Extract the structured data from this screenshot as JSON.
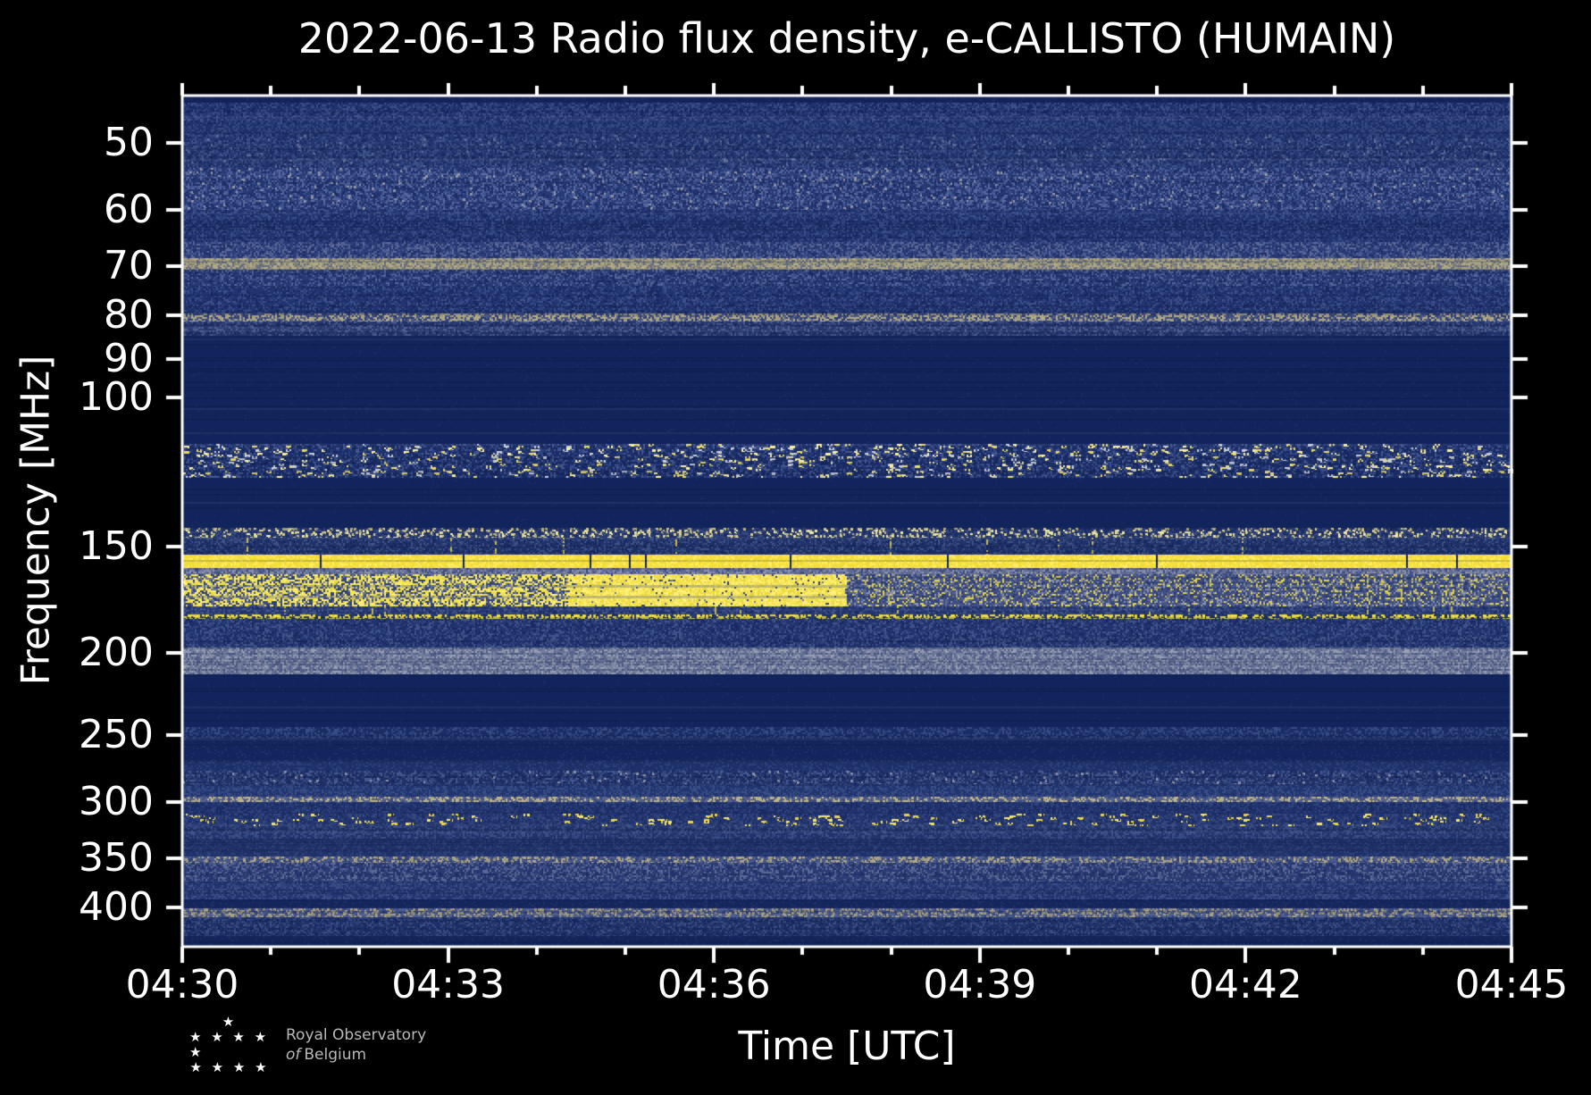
{
  "title": "2022-06-13 Radio flux density, e-CALLISTO (HUMAIN)",
  "logo": {
    "line1": "Royal Observatory",
    "line2_italic": "of",
    "line2_rest": "Belgium",
    "star_rows": [
      1,
      5,
      4
    ],
    "star_glyph": "★"
  },
  "chart_data": {
    "type": "heatmap",
    "title": "2022-06-13 Radio flux density, e-CALLISTO (HUMAIN)",
    "xlabel": "Time [UTC]",
    "ylabel": "Frequency [MHz]",
    "x_major_ticks": [
      "04:30",
      "04:33",
      "04:36",
      "04:39",
      "04:42",
      "04:45"
    ],
    "x_range_min": [
      0,
      15
    ],
    "x_minor_interval_min": 1,
    "y_scale": "log",
    "y_range_mhz": [
      44,
      445
    ],
    "y_ticks": [
      50,
      60,
      70,
      80,
      90,
      100,
      150,
      200,
      250,
      300,
      350,
      400
    ],
    "legend": "none",
    "grid": false,
    "colors": {
      "figure_background": "#000000",
      "quiet_navy": "#12245c",
      "noise_blue": "#22346f",
      "bright_yellow": "#f8e33c",
      "tan": "#b2ab88",
      "grey_band": "#717b9c",
      "frame": "#ffffff"
    },
    "bands": [
      {
        "f": [
          44.0,
          44.9
        ],
        "base": "#13235a",
        "sp": [
          "#1a2b63"
        ],
        "d": 0.12
      },
      {
        "f": [
          44.9,
          47.5
        ],
        "base": "#22346f",
        "sp": [
          "#2c407c",
          "#3a4e87",
          "#17275f"
        ],
        "d": 0.6
      },
      {
        "f": [
          47.5,
          49.0
        ],
        "base": "#1e3069",
        "sp": [
          "#2b3f7a",
          "#35497f"
        ],
        "d": 0.5
      },
      {
        "f": [
          49.0,
          53.5
        ],
        "base": "#24366f",
        "sp": [
          "#2e427d",
          "#3d5288",
          "#1a2a62"
        ],
        "d": 0.6,
        "br": [
          "#5f6c97"
        ],
        "bp": 0.02
      },
      {
        "f": [
          53.5,
          60.0
        ],
        "base": "#283a76",
        "sp": [
          "#3d5290",
          "#55679c",
          "#1d2d66"
        ],
        "d": 0.6,
        "br": [
          "#8f96a8"
        ],
        "bp": 0.02
      },
      {
        "f": [
          60.0,
          65.5
        ],
        "base": "#22346f",
        "sp": [
          "#2d417e",
          "#3a4f8a",
          "#192961"
        ],
        "d": 0.55
      },
      {
        "f": [
          65.5,
          68.4
        ],
        "base": "#2c3f7b",
        "sp": [
          "#45588f",
          "#5d6a96",
          "#202f68"
        ],
        "d": 0.6
      },
      {
        "f": [
          68.4,
          70.6
        ],
        "base": "#8a8771",
        "sp": [
          "#b2ab88",
          "#a39d80",
          "#666d84"
        ],
        "d": 0.8
      },
      {
        "f": [
          70.6,
          74.0
        ],
        "base": "#273a76",
        "sp": [
          "#3b5089",
          "#54659a",
          "#1c2c64"
        ],
        "d": 0.55
      },
      {
        "f": [
          74.0,
          79.5
        ],
        "base": "#223470",
        "sp": [
          "#2e4380",
          "#3c5189",
          "#182860"
        ],
        "d": 0.5
      },
      {
        "f": [
          79.5,
          81.3
        ],
        "base": "#4e5a86",
        "sp": [
          "#a29c7f",
          "#b3ac89",
          "#2f3f74"
        ],
        "d": 0.7
      },
      {
        "f": [
          81.3,
          84.5
        ],
        "base": "#25376f",
        "sp": [
          "#36497f",
          "#4a5b8d",
          "#1b2b62"
        ],
        "d": 0.5
      },
      {
        "f": [
          84.5,
          113.5
        ],
        "base": "#12245c",
        "sp": [
          "#182a62"
        ],
        "d": 0.05
      },
      {
        "f": [
          113.5,
          124.5
        ],
        "base": "#1c2f68",
        "sp": [
          "#2c4180",
          "#44568e",
          "#15265e"
        ],
        "d": 0.5,
        "br": [
          "#e8d96a",
          "#fdf0a0",
          "#c9cdd6"
        ],
        "bp": 0.06,
        "bw": 6
      },
      {
        "f": [
          124.5,
          142.5
        ],
        "base": "#12245c",
        "sp": [
          "#182a62"
        ],
        "d": 0.04
      },
      {
        "f": [
          142.5,
          146.5
        ],
        "base": "#1b2e66",
        "sp": [
          "#37497f",
          "#2a3c74"
        ],
        "d": 0.35,
        "br": [
          "#d8cf8f",
          "#efe9b0",
          "#b9b490"
        ],
        "bp": 0.22
      },
      {
        "f": [
          146.5,
          153.3
        ],
        "base": "#203269",
        "sp": [
          "#2f4379",
          "#3e5286",
          "#172760"
        ],
        "d": 0.5,
        "br": [
          "#e5d44e"
        ],
        "bp": 0.012,
        "bh": 1
      },
      {
        "f": [
          153.3,
          159.0
        ],
        "base": "#f8e33c",
        "sp": [
          "#f3da2e",
          "#ffee66",
          "#eedc49"
        ],
        "d": 0.6,
        "gap": 0.012
      },
      {
        "f": [
          159.0,
          161.5
        ],
        "base": "#606b92",
        "sp": [
          "#7c85a3",
          "#3f4d7e",
          "#8d94ac"
        ],
        "d": 0.55
      },
      {
        "f": [
          161.5,
          176.5
        ],
        "base": "#3e4e83",
        "sp": [
          "#8d94ac",
          "#5a6790",
          "#2c3d74",
          "#e3d24e"
        ],
        "d": 0.6,
        "br": [
          "#f0df52"
        ],
        "bp": 0.03,
        "bh": 1
      },
      {
        "f": [
          176.5,
          180.5
        ],
        "base": "#243671",
        "sp": [
          "#33477e",
          "#43568b",
          "#1a2a62"
        ],
        "d": 0.5,
        "br": [
          "#d9c94f"
        ],
        "bp": 0.015,
        "bh": 1
      },
      {
        "f": [
          180.5,
          182.5
        ],
        "base": "#1c2e64",
        "sp": [
          "#2a3c72"
        ],
        "d": 0.3,
        "br": [
          "#f2e24c",
          "#e0d051"
        ],
        "bp": 0.45
      },
      {
        "f": [
          182.5,
          197.5
        ],
        "base": "#223470",
        "sp": [
          "#30447c",
          "#405489",
          "#192960"
        ],
        "d": 0.55
      },
      {
        "f": [
          197.5,
          212.0
        ],
        "base": "#717b9c",
        "sp": [
          "#8b93ad",
          "#515e8a",
          "#9aa1b5",
          "#5d6a94"
        ],
        "d": 0.65
      },
      {
        "f": [
          212.0,
          245.0
        ],
        "base": "#12245c",
        "sp": [
          "#182a62"
        ],
        "d": 0.04
      },
      {
        "f": [
          245.0,
          253.0
        ],
        "base": "#1a2c64",
        "sp": [
          "#2b3f7a",
          "#384c83"
        ],
        "d": 0.45
      },
      {
        "f": [
          253.0,
          268.0
        ],
        "base": "#14255e",
        "sp": [
          "#1d2f68"
        ],
        "d": 0.12
      },
      {
        "f": [
          268.0,
          276.0
        ],
        "base": "#1d2f67",
        "sp": [
          "#2c407c",
          "#24366f"
        ],
        "d": 0.4
      },
      {
        "f": [
          276.0,
          286.0
        ],
        "base": "#213369",
        "sp": [
          "#33477f",
          "#455890",
          "#182860"
        ],
        "d": 0.55,
        "br": [
          "#8c93a9"
        ],
        "bp": 0.02
      },
      {
        "f": [
          286.0,
          296.0
        ],
        "base": "#223470",
        "sp": [
          "#2f437b",
          "#3a4e85"
        ],
        "d": 0.5
      },
      {
        "f": [
          296.0,
          300.5
        ],
        "base": "#3d4b7e",
        "sp": [
          "#566390"
        ],
        "d": 0.4,
        "br": [
          "#c3b98b",
          "#a8a287",
          "#b5ae8d"
        ],
        "bp": 0.32
      },
      {
        "f": [
          300.5,
          310.0
        ],
        "base": "#223470",
        "sp": [
          "#2f437b",
          "#1a2a61"
        ],
        "d": 0.5
      },
      {
        "f": [
          310.0,
          321.0
        ],
        "base": "#253772",
        "sp": [
          "#34487f",
          "#1c2c64"
        ],
        "d": 0.5,
        "br": [
          "#e9d44e",
          "#f5e670"
        ],
        "bp": 0.035,
        "bw": 7
      },
      {
        "f": [
          321.0,
          332.0
        ],
        "base": "#203269",
        "sp": [
          "#2e427b",
          "#3b4f85"
        ],
        "d": 0.5
      },
      {
        "f": [
          332.0,
          348.0
        ],
        "base": "#1e3067",
        "sp": [
          "#2d417b",
          "#253871"
        ],
        "d": 0.45
      },
      {
        "f": [
          348.0,
          354.0
        ],
        "base": "#2d3e76",
        "sp": [
          "#47588c"
        ],
        "d": 0.4,
        "br": [
          "#b1a98c",
          "#9b967e"
        ],
        "bp": 0.28
      },
      {
        "f": [
          354.0,
          373.0
        ],
        "base": "#2b3c74",
        "sp": [
          "#46578c",
          "#5d6a96",
          "#20316b"
        ],
        "d": 0.55
      },
      {
        "f": [
          373.0,
          391.0
        ],
        "base": "#223470",
        "sp": [
          "#30447c",
          "#3d5187"
        ],
        "d": 0.5
      },
      {
        "f": [
          391.0,
          401.0
        ],
        "base": "#15265f",
        "sp": [
          "#1e3068"
        ],
        "d": 0.15
      },
      {
        "f": [
          401.0,
          411.0
        ],
        "base": "#2f4078",
        "sp": [
          "#49598d"
        ],
        "d": 0.4,
        "br": [
          "#a8a083",
          "#8f8d79"
        ],
        "bp": 0.28
      },
      {
        "f": [
          411.0,
          432.0
        ],
        "base": "#203269",
        "sp": [
          "#2e427c",
          "#3b4f86",
          "#182860"
        ],
        "d": 0.5
      },
      {
        "f": [
          432.0,
          445.0
        ],
        "base": "#132459",
        "sp": [
          "#1b2d64"
        ],
        "d": 0.12
      }
    ],
    "events": [
      {
        "name": "moderate-rfi-lead-in",
        "t": [
          0.0,
          4.35
        ],
        "f": [
          161.5,
          176.5
        ],
        "p": 0.55
      },
      {
        "name": "strong-rfi-block",
        "t": [
          4.35,
          7.5
        ],
        "f": [
          161.5,
          176.5
        ],
        "p": 0.93
      }
    ]
  }
}
